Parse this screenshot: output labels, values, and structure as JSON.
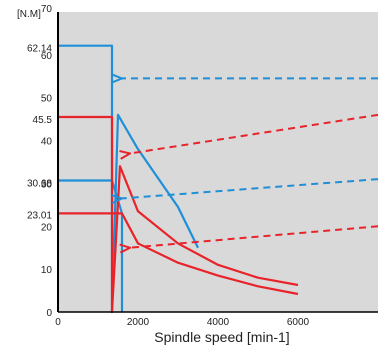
{
  "chart_data": {
    "type": "line",
    "title": "",
    "ylabel": "[N.M]",
    "xlabel": "Spindle speed [min-1]",
    "xlim": [
      0,
      8000
    ],
    "ylim": [
      0,
      70
    ],
    "grid": false,
    "x_ticks": [
      "0",
      "2000",
      "4000",
      "6000"
    ],
    "x_tick_values": [
      0,
      2000,
      4000,
      6000
    ],
    "y_ticks": [
      "0",
      "10",
      "20",
      "23.01",
      "30",
      "30.68",
      "40",
      "45.5",
      "50",
      "60",
      "62.14",
      "70"
    ],
    "y_tick_values": [
      0,
      10,
      20,
      23.01,
      30,
      30.68,
      40,
      45.5,
      50,
      60,
      62.14,
      70
    ],
    "colors": {
      "blue": "#1f8fd8",
      "red": "#e8232a",
      "background": "#d9d9d9"
    },
    "series": [
      {
        "color": "blue",
        "style": "solid",
        "x": [
          0,
          1350,
          1350,
          1500,
          2000,
          3000,
          3500
        ],
        "y": [
          62.14,
          62.14,
          0,
          46,
          38,
          24.5,
          15
        ]
      },
      {
        "color": "blue",
        "style": "solid",
        "x": [
          0,
          1350,
          1600,
          1600
        ],
        "y": [
          30.68,
          30.68,
          23,
          0
        ]
      },
      {
        "color": "red",
        "style": "solid",
        "x": [
          0,
          1350,
          1350,
          1550,
          2000,
          3000,
          4000,
          5000,
          6000
        ],
        "y": [
          45.5,
          45.5,
          0,
          34,
          23.5,
          16,
          11,
          8,
          6.3
        ]
      },
      {
        "color": "red",
        "style": "solid",
        "x": [
          0,
          1600,
          2000,
          3000,
          4000,
          5000,
          6000
        ],
        "y": [
          23.01,
          23.01,
          16,
          11.5,
          8.5,
          6,
          4.2
        ]
      }
    ],
    "arrows": [
      {
        "color": "blue",
        "from": [
          8000,
          54.5
        ],
        "to": [
          1600,
          54.5
        ]
      },
      {
        "color": "red",
        "from": [
          8000,
          46
        ],
        "to": [
          1800,
          37
        ]
      },
      {
        "color": "blue",
        "from": [
          8000,
          31
        ],
        "to": [
          1600,
          26.5
        ]
      },
      {
        "color": "red",
        "from": [
          8000,
          20
        ],
        "to": [
          1800,
          15
        ]
      }
    ]
  }
}
